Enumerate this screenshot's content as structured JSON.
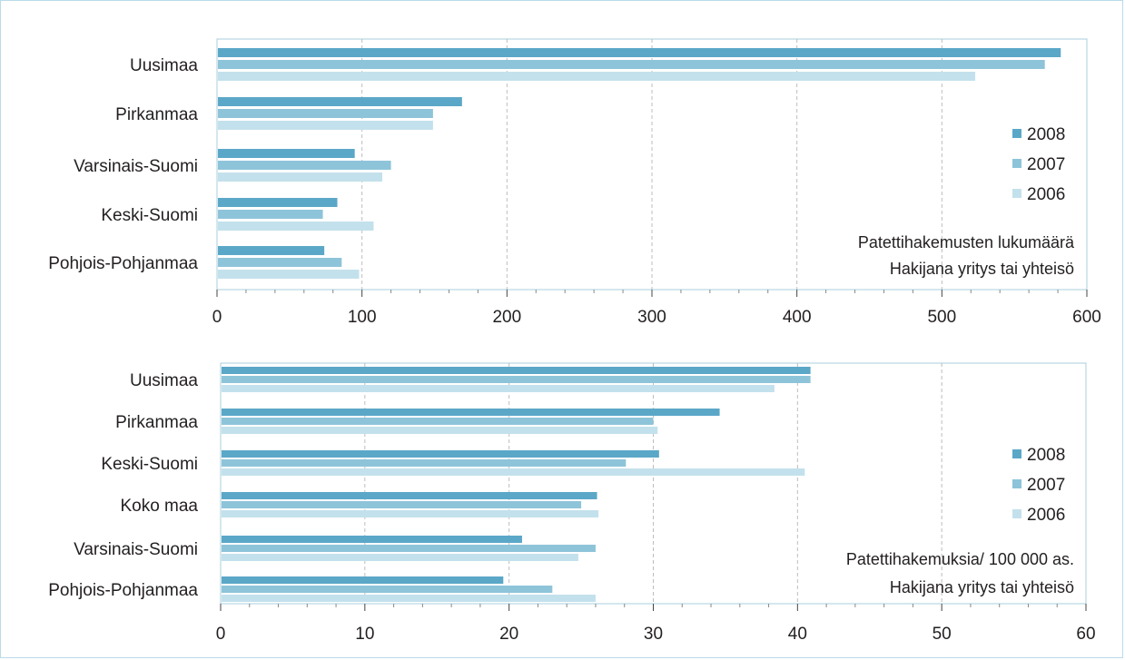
{
  "colors": {
    "2008": "#5ba7c8",
    "2007": "#8ec4d9",
    "2006": "#c3e1ec",
    "grid": "#bdbdbd",
    "axis": "#a9cfde",
    "frame": "#b9dbe8"
  },
  "chart_data": [
    {
      "type": "bar",
      "orientation": "horizontal",
      "categories": [
        "Uusimaa",
        "Pirkanmaa",
        "Varsinais-Suomi",
        "Keski-Suomi",
        "Pohjois-Pohjanmaa"
      ],
      "series": [
        {
          "name": "2008",
          "values": [
            582,
            169,
            95,
            83,
            74
          ]
        },
        {
          "name": "2007",
          "values": [
            571,
            149,
            120,
            73,
            86
          ]
        },
        {
          "name": "2006",
          "values": [
            523,
            149,
            114,
            108,
            98
          ]
        }
      ],
      "xlim": [
        0,
        600
      ],
      "xticks": [
        "0",
        "100",
        "200",
        "300",
        "400",
        "500",
        "600"
      ],
      "grid": "vertical dashed",
      "legend_position": "right",
      "annotation": [
        "Patettihakemusten lukumäärä",
        "Hakijana yritys tai yhteisö"
      ]
    },
    {
      "type": "bar",
      "orientation": "horizontal",
      "categories": [
        "Uusimaa",
        "Pirkanmaa",
        "Keski-Suomi",
        "Koko maa",
        "Varsinais-Suomi",
        "Pohjois-Pohjanmaa"
      ],
      "series": [
        {
          "name": "2008",
          "values": [
            40.9,
            34.6,
            30.4,
            26.1,
            20.9,
            19.6
          ]
        },
        {
          "name": "2007",
          "values": [
            40.9,
            30.0,
            28.1,
            25.0,
            26.0,
            23.0
          ]
        },
        {
          "name": "2006",
          "values": [
            38.4,
            30.3,
            40.5,
            26.2,
            24.8,
            26.0
          ]
        }
      ],
      "xlim": [
        0,
        60
      ],
      "xticks": [
        "0",
        "10",
        "20",
        "30",
        "40",
        "50",
        "60"
      ],
      "grid": "vertical dashed",
      "legend_position": "right",
      "annotation": [
        "Patettihakemuksia/ 100 000 as.",
        "Hakijana yritys tai yhteisö"
      ]
    }
  ]
}
